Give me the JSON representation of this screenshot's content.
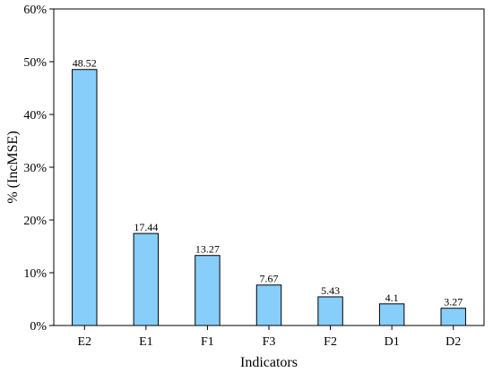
{
  "chart_data": {
    "type": "bar",
    "categories": [
      "E2",
      "E1",
      "F1",
      "F3",
      "F2",
      "D1",
      "D2"
    ],
    "values": [
      48.52,
      17.44,
      13.27,
      7.67,
      5.43,
      4.1,
      3.27
    ],
    "data_labels": [
      "48.52",
      "17.44",
      "13.27",
      "7.67",
      "5.43",
      "4.1",
      "3.27"
    ],
    "title": "",
    "xlabel": "Indicators",
    "ylabel": "% (IncMSE)",
    "ylim": [
      0,
      60
    ],
    "yticks": [
      0,
      10,
      20,
      30,
      40,
      50,
      60
    ],
    "ytick_labels": [
      "0%",
      "10%",
      "20%",
      "30%",
      "40%",
      "50%",
      "60%"
    ],
    "grid": false,
    "legend": "none",
    "bar_color": "#87cefa",
    "edge_color": "#000000"
  }
}
